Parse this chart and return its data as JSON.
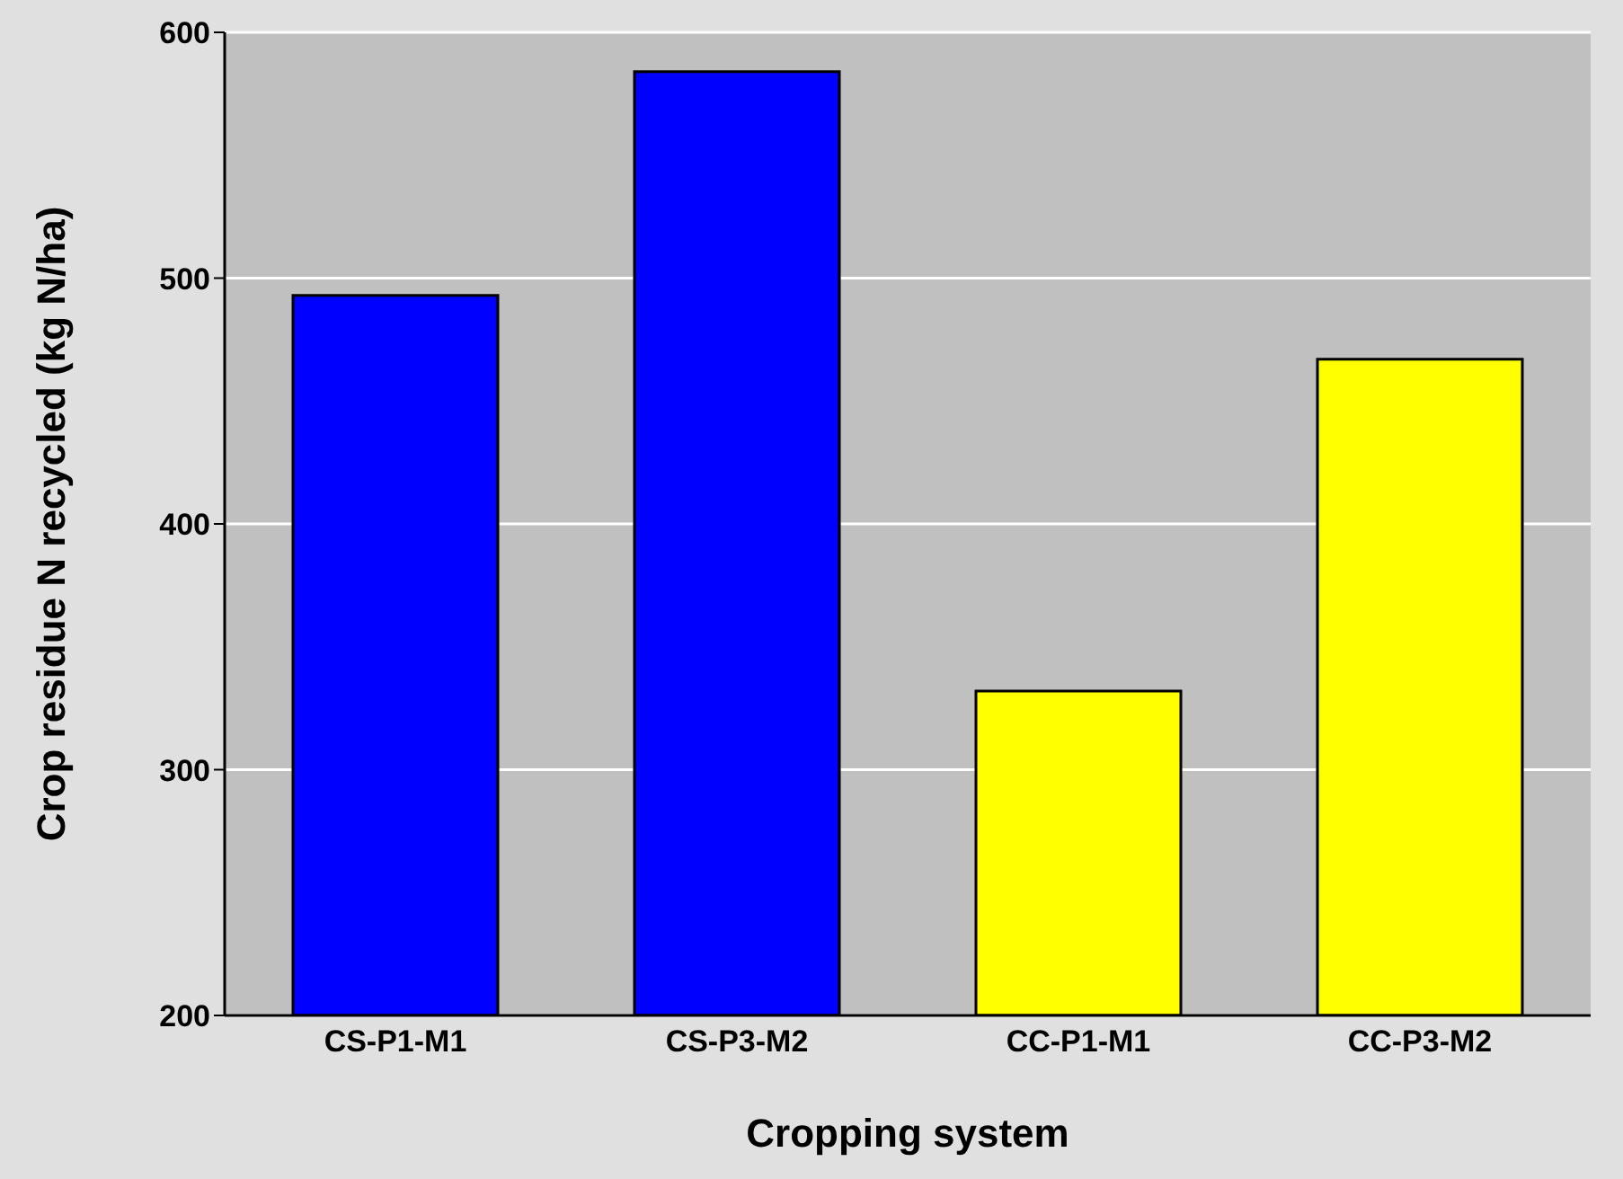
{
  "chart_data": {
    "type": "bar",
    "xlabel": "Cropping system",
    "ylabel": "Crop residue N recycled (kg N/ha)",
    "categories": [
      "CS-P1-M1",
      "CS-P3-M2",
      "CC-P1-M1",
      "CC-P3-M2"
    ],
    "values": [
      493,
      584,
      332,
      467
    ],
    "colors": [
      "#0000ff",
      "#0000ff",
      "#ffff00",
      "#ffff00"
    ],
    "ylim": [
      200,
      600
    ],
    "yticks": [
      200,
      300,
      400,
      500,
      600
    ],
    "grid": "y"
  }
}
